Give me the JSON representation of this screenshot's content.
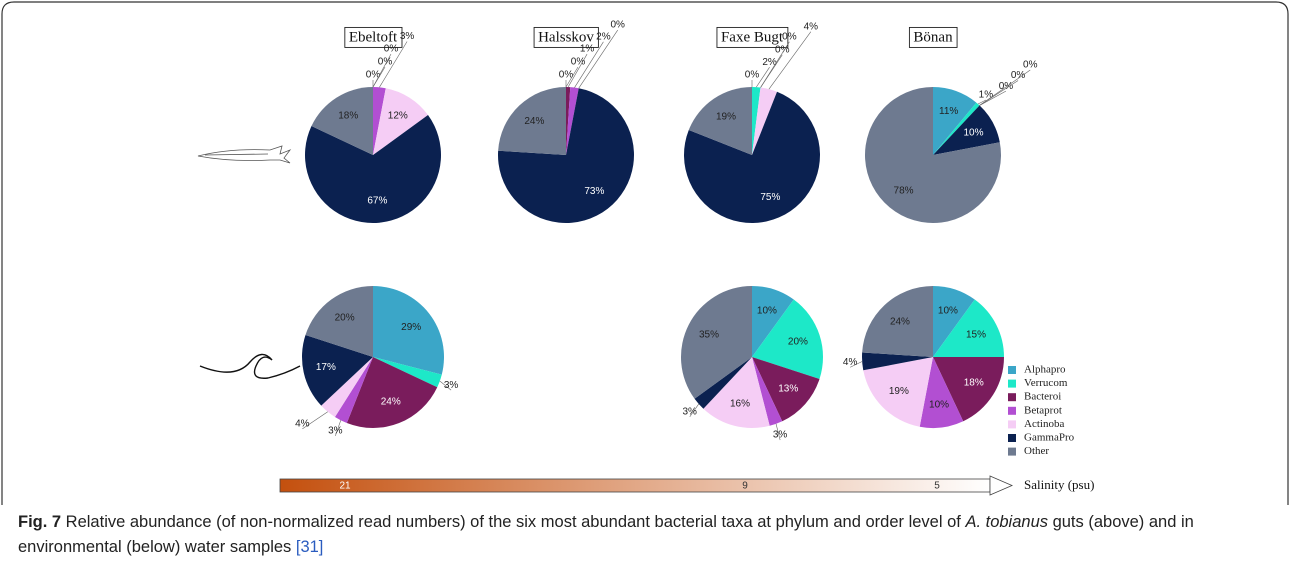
{
  "chart_data": {
    "type": "pie",
    "sites": [
      "Ebeltoft",
      "Halsskov",
      "Faxe Bugt",
      "Bönan"
    ],
    "categories": [
      "Alphapro",
      "Verrucom",
      "Bacteroi",
      "Betaprot",
      "Actinoba",
      "GammaPro",
      "Other"
    ],
    "colors": [
      "#3ba6c8",
      "#1de8c8",
      "#7a1c5c",
      "#b24fd2",
      "#f5cdf5",
      "#0b2150",
      "#6e7a90"
    ],
    "fish": [
      [
        0,
        0,
        0,
        3,
        12,
        67,
        18
      ],
      [
        0,
        0,
        1,
        2,
        0,
        73,
        24
      ],
      [
        0,
        2,
        0,
        0,
        4,
        75,
        19
      ],
      [
        11,
        1,
        0,
        0,
        0,
        10,
        78
      ]
    ],
    "fish_labels": [
      [
        "0%",
        "0%",
        "0%",
        "3%",
        "12%",
        "67%",
        "18%"
      ],
      [
        "0%",
        "0%",
        "1%",
        "2%",
        "0%",
        "73%",
        "24%"
      ],
      [
        "0%",
        "2%",
        "0%",
        "0%",
        "4%",
        "75%",
        "19%"
      ],
      [
        "11%",
        "1%",
        "0%",
        "0%",
        "0%",
        "10%",
        "78%"
      ]
    ],
    "water": [
      [
        29,
        3,
        24,
        3,
        4,
        17,
        20
      ],
      null,
      [
        10,
        20,
        13,
        3,
        16,
        3,
        35
      ],
      [
        10,
        15,
        18,
        10,
        19,
        4,
        24
      ]
    ],
    "water_labels": [
      [
        "29%",
        "3%",
        "24%",
        "3%",
        "4%",
        "17%",
        "20%"
      ],
      null,
      [
        "10%",
        "20%",
        "13%",
        "3%",
        "16%",
        "3%",
        "35%"
      ],
      [
        "10%",
        "15%",
        "18%",
        "10%",
        "19%",
        "4%",
        "24%"
      ]
    ],
    "salinity_label": "Salinity (psu)",
    "salinity_ticks": [
      21,
      9,
      5
    ]
  },
  "caption": {
    "figure": "Fig. 7",
    "text": " Relative abundance (of non-normalized read numbers) of the six most abundant bacterial taxa at phylum and order level of ",
    "species": "A. tobianus",
    "text2": " guts (above) and in environmental (below) water samples ",
    "ref": "[31]"
  }
}
